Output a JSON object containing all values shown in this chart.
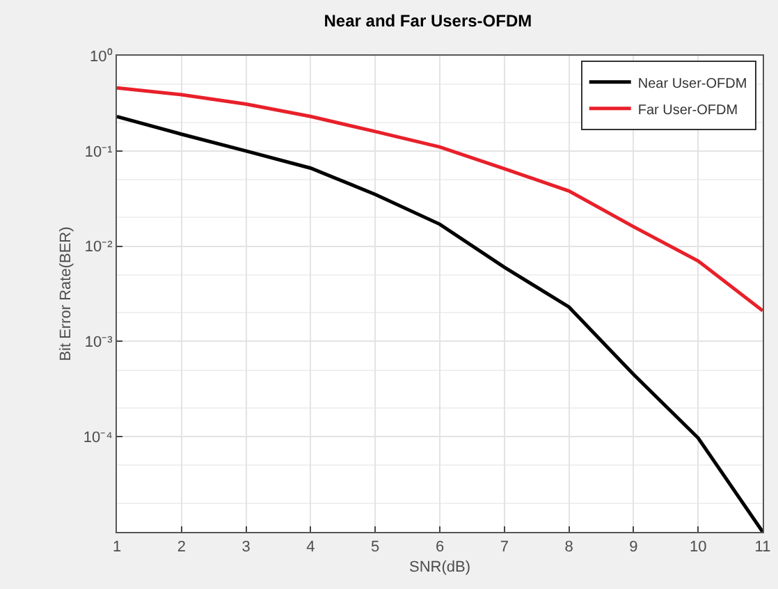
{
  "chart_data": {
    "type": "line",
    "title": "Near and Far Users-OFDM",
    "xlabel": "SNR(dB)",
    "ylabel": "Bit Error Rate(BER)",
    "x": [
      1,
      2,
      3,
      4,
      5,
      6,
      7,
      8,
      9,
      10,
      11
    ],
    "series": [
      {
        "name": "Near User-OFDM",
        "color": "#000000",
        "values": [
          0.23,
          0.15,
          0.1,
          0.066,
          0.035,
          0.017,
          0.006,
          0.0023,
          0.00045,
          9.7e-05,
          1e-05
        ]
      },
      {
        "name": "Far User-OFDM",
        "color": "#e8202a",
        "values": [
          0.46,
          0.39,
          0.31,
          0.23,
          0.16,
          0.11,
          0.065,
          0.038,
          0.016,
          0.007,
          0.0021
        ]
      }
    ],
    "log": "y",
    "xlim": [
      1,
      11
    ],
    "xticks": [
      1,
      2,
      3,
      4,
      5,
      6,
      7,
      8,
      9,
      10,
      11
    ],
    "ylim": [
      1e-05,
      1
    ],
    "yticks": [
      {
        "value": 1,
        "label": "10⁰"
      },
      {
        "value": 0.1,
        "label": "10⁻¹"
      },
      {
        "value": 0.01,
        "label": "10⁻²"
      },
      {
        "value": 0.001,
        "label": "10⁻³"
      },
      {
        "value": 0.0001,
        "label": "10⁻⁴"
      }
    ],
    "grid": true,
    "legend": "top right",
    "marker": "none",
    "line_style": "solid"
  }
}
